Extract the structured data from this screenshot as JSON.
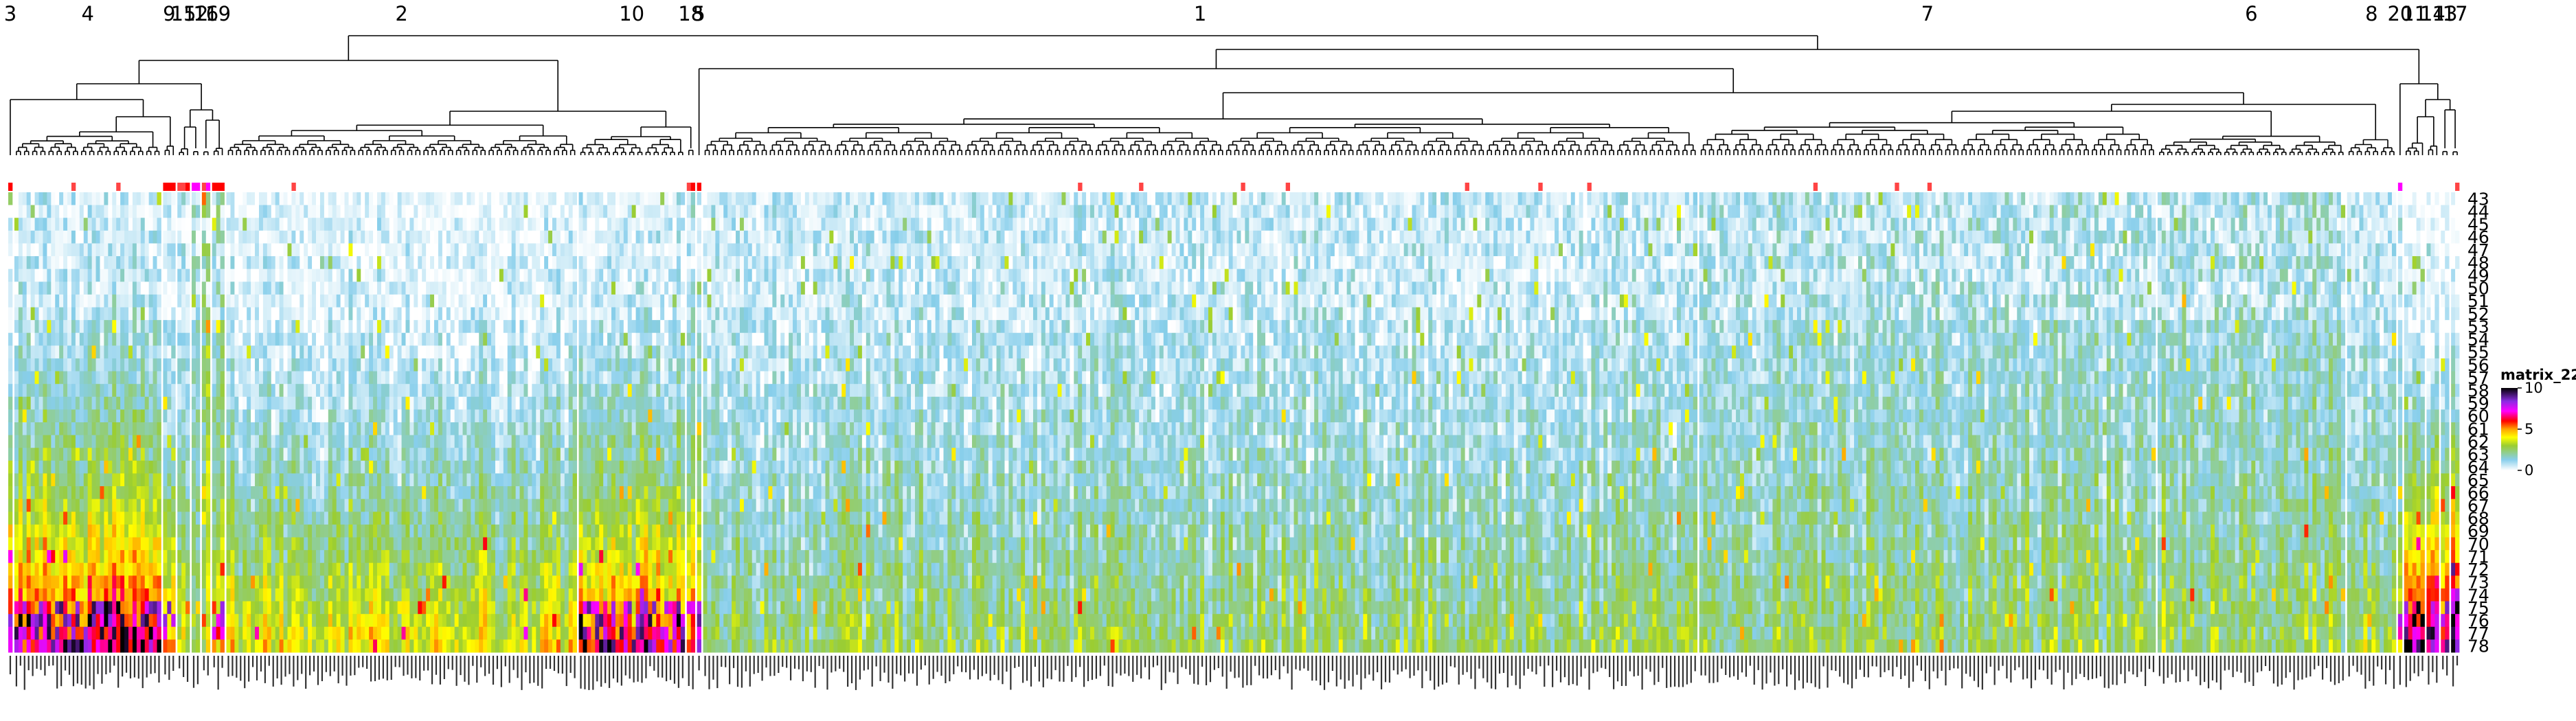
{
  "chart_data": {
    "type": "heatmap",
    "title": "",
    "xlabel": "",
    "ylabel": "",
    "column_order": [
      "3",
      "4",
      "9",
      "15",
      "12",
      "16",
      "19",
      "2",
      "10",
      "18",
      "5",
      "1",
      "7",
      "6",
      "8",
      "20",
      "11",
      "14",
      "13",
      "17"
    ],
    "clusters": [
      {
        "label": "3",
        "n": 1
      },
      {
        "label": "4",
        "n": 36
      },
      {
        "label": "9",
        "n": 3
      },
      {
        "label": "15",
        "n": 3
      },
      {
        "label": "12",
        "n": 2
      },
      {
        "label": "16",
        "n": 2
      },
      {
        "label": "19",
        "n": 3
      },
      {
        "label": "2",
        "n": 86
      },
      {
        "label": "10",
        "n": 26
      },
      {
        "label": "18",
        "n": 2
      },
      {
        "label": "5",
        "n": 1
      },
      {
        "label": "1",
        "n": 244
      },
      {
        "label": "7",
        "n": 112
      },
      {
        "label": "6",
        "n": 46
      },
      {
        "label": "8",
        "n": 12
      },
      {
        "label": "20",
        "n": 1
      },
      {
        "label": "11",
        "n": 5
      },
      {
        "label": "14",
        "n": 3
      },
      {
        "label": "13",
        "n": 2
      },
      {
        "label": "17",
        "n": 2
      }
    ],
    "rows": [
      "43",
      "44",
      "45",
      "46",
      "47",
      "48",
      "49",
      "50",
      "51",
      "52",
      "53",
      "54",
      "55",
      "56",
      "57",
      "58",
      "59",
      "60",
      "61",
      "62",
      "63",
      "64",
      "65",
      "66",
      "67",
      "68",
      "69",
      "70",
      "71",
      "72",
      "73",
      "74",
      "75",
      "76",
      "77",
      "78"
    ],
    "value_range": [
      0,
      10
    ],
    "legend": {
      "title": "matrix_22",
      "ticks": [
        "10",
        "5",
        "0"
      ],
      "tick_values": [
        10,
        5,
        0
      ],
      "colors": [
        "#ffffff",
        "#87ceeb",
        "#9acd32",
        "#ffff00",
        "#ffa500",
        "#ff0000",
        "#ff00ff",
        "#8a2be2",
        "#000000"
      ],
      "placement": "right"
    },
    "column_label_note": "Column labels are rendered vertically and are not legible in the source image"
  }
}
